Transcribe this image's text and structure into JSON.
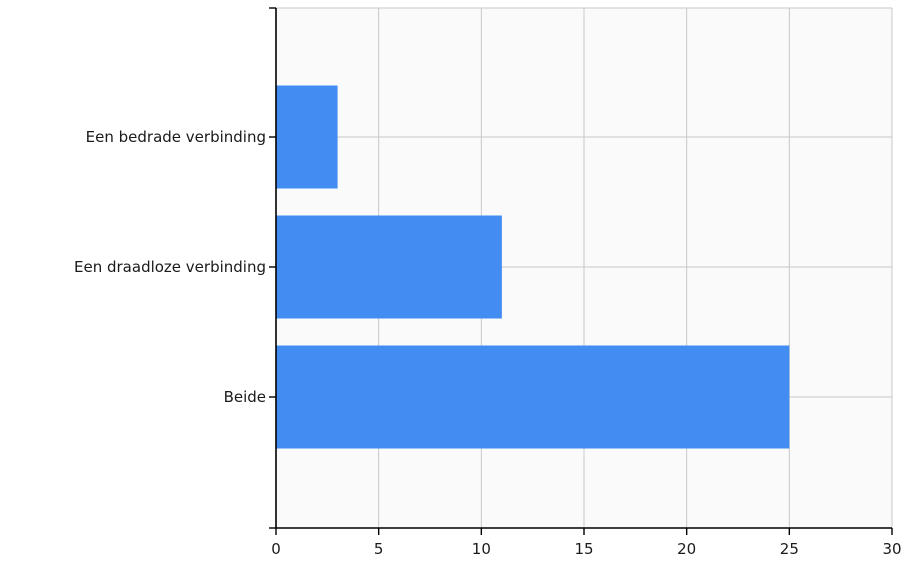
{
  "chart_data": {
    "type": "bar",
    "orientation": "horizontal",
    "categories": [
      "Een bedrade verbinding",
      "Een draadloze verbinding",
      "Beide"
    ],
    "values": [
      3,
      11,
      25
    ],
    "xlim": [
      0,
      30
    ],
    "xticks": [
      0,
      5,
      10,
      15,
      20,
      25,
      30
    ],
    "xtick_labels": [
      "0",
      "5",
      "10",
      "15",
      "20",
      "25",
      "30"
    ],
    "title": "",
    "xlabel": "",
    "ylabel": "",
    "grid": true,
    "bar_color": "#428cf2",
    "plot_background": "#fafafa"
  }
}
